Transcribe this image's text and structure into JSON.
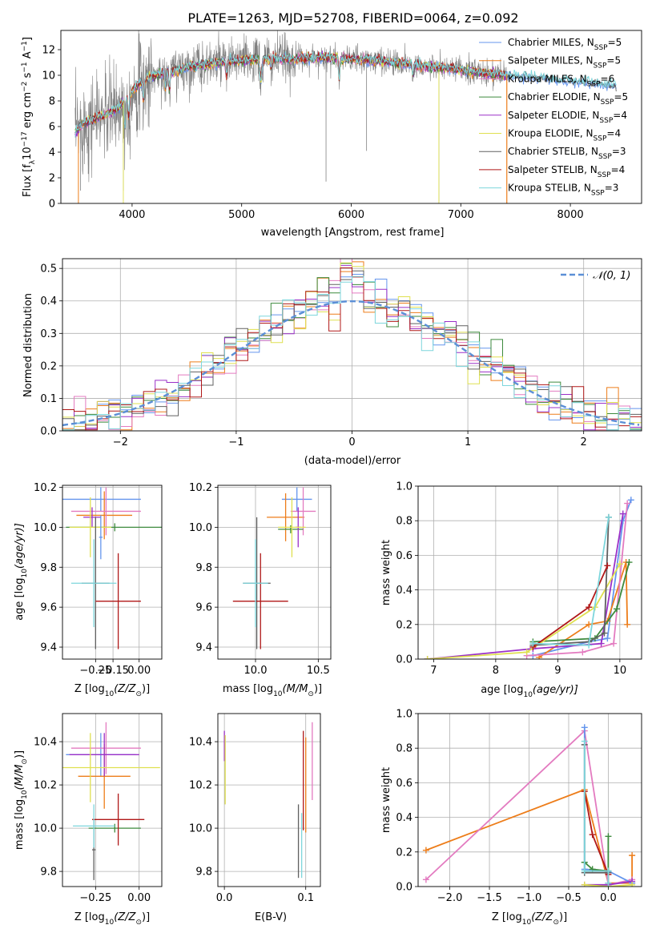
{
  "figure_title": "PLATE=1263, MJD=52708, FIBERID=0064, z=0.092",
  "colors": {
    "cm": "#6495ed",
    "sm": "#ed7d1a",
    "km": "#e37bc0",
    "ce": "#3d8a3d",
    "se": "#9b30c8",
    "ke": "#dfe050",
    "cs": "#606060",
    "ss": "#b01818",
    "ks": "#7dd6dc",
    "data": "#808080",
    "gauss": "#5b8fd6"
  },
  "chart_data": [
    {
      "id": "spectrum",
      "type": "line",
      "title": "PLATE=1263, MJD=52708, FIBERID=0064, z=0.092",
      "xlabel": "wavelength [Angstrom, rest frame]",
      "ylabel_main": "Flux [f",
      "ylabel_lambda": "λ",
      "ylabel_mid": "10",
      "ylabel_exp1": "−17",
      "ylabel_mid2": " erg cm",
      "ylabel_exp2": "−2",
      "ylabel_mid3": " s",
      "ylabel_exp3": "−1",
      "ylabel_mid4": " A",
      "ylabel_exp4": "−1",
      "ylabel_end": "]",
      "xlim": [
        3350,
        8650
      ],
      "ylim": [
        0,
        13.5
      ],
      "xticks": [
        4000,
        5000,
        6000,
        7000,
        8000
      ],
      "yticks": [
        0,
        2,
        4,
        6,
        8,
        10,
        12
      ],
      "legend_position": "right",
      "legend": [
        {
          "name": "Chabrier MILES, N",
          "sub": "SSP",
          "val": "=5",
          "color": "cm"
        },
        {
          "name": "Salpeter MILES, N",
          "sub": "SSP",
          "val": "=5",
          "color": "sm"
        },
        {
          "name": "Kroupa MILES, N",
          "sub": "SSP",
          "val": "=6",
          "color": "km"
        },
        {
          "name": "Chabrier ELODIE, N",
          "sub": "SSP",
          "val": "=5",
          "color": "ce"
        },
        {
          "name": "Salpeter ELODIE, N",
          "sub": "SSP",
          "val": "=4",
          "color": "se"
        },
        {
          "name": "Kroupa ELODIE, N",
          "sub": "SSP",
          "val": "=4",
          "color": "ke"
        },
        {
          "name": "Chabrier STELIB, N",
          "sub": "SSP",
          "val": "=3",
          "color": "cs"
        },
        {
          "name": "Salpeter STELIB, N",
          "sub": "SSP",
          "val": "=4",
          "color": "ss"
        },
        {
          "name": "Kroupa STELIB, N",
          "sub": "SSP",
          "val": "=3",
          "color": "ks"
        }
      ],
      "continuum": [
        [
          3480,
          5.5
        ],
        [
          3550,
          6.2
        ],
        [
          3650,
          6.6
        ],
        [
          3750,
          6.9
        ],
        [
          3850,
          7.3
        ],
        [
          3950,
          8.2
        ],
        [
          4050,
          9.2
        ],
        [
          4150,
          9.8
        ],
        [
          4300,
          10.2
        ],
        [
          4500,
          10.6
        ],
        [
          4700,
          10.9
        ],
        [
          4900,
          11.1
        ],
        [
          5100,
          11.2
        ],
        [
          5300,
          11.3
        ],
        [
          5500,
          11.3
        ],
        [
          5700,
          11.4
        ],
        [
          5900,
          11.3
        ],
        [
          6100,
          11.2
        ],
        [
          6300,
          11.1
        ],
        [
          6500,
          10.9
        ],
        [
          6700,
          10.7
        ],
        [
          6900,
          10.5
        ],
        [
          7100,
          10.3
        ],
        [
          7300,
          10.1
        ],
        [
          7500,
          9.95
        ],
        [
          7700,
          9.8
        ],
        [
          7900,
          9.6
        ],
        [
          8100,
          9.45
        ],
        [
          8300,
          9.3
        ],
        [
          8420,
          9.2
        ]
      ]
    },
    {
      "id": "residuals",
      "type": "step",
      "xlabel": "(data-model)/error",
      "ylabel": "Normed distribution",
      "xlim": [
        -2.5,
        2.5
      ],
      "ylim": [
        0,
        0.53
      ],
      "xticks": [
        -2,
        -1,
        0,
        1,
        2
      ],
      "xtick_labels": [
        "−2",
        "−1",
        "0",
        "1",
        "2"
      ],
      "yticks": [
        0,
        0.1,
        0.2,
        0.3,
        0.4,
        0.5
      ],
      "ytick_labels": [
        "0.0",
        "0.1",
        "0.2",
        "0.3",
        "0.4",
        "0.5"
      ],
      "legend": [
        {
          "name": "𝒩(0, 1)",
          "color": "gauss",
          "style": "dashed"
        }
      ],
      "legend_position": "top-right",
      "bin_width": 0.1
    },
    {
      "id": "age_vs_Z",
      "type": "errorbar",
      "xlabel_main": "Z [log",
      "xlabel_sub": "10",
      "xlabel_arg": "(Z/Z",
      "xlabel_sun": "⊙",
      "xlabel_end": ")]",
      "ylabel_main": "age  [log",
      "ylabel_sub": "10",
      "ylabel_arg": "(age/yr)]",
      "xlim": [
        -0.44,
        0.13
      ],
      "ylim": [
        9.34,
        10.21
      ],
      "xticks": [
        -0.25,
        -0.15,
        0.0
      ],
      "xtick_labels": [
        "−0.25",
        "−0.15",
        "0.00"
      ],
      "yticks": [
        9.4,
        9.6,
        9.8,
        10.0,
        10.2
      ],
      "ytick_labels": [
        "9.4",
        "9.6",
        "9.8",
        "10.0",
        "10.2"
      ],
      "points": [
        {
          "c": "cm",
          "x": -0.22,
          "xerr": 0.23,
          "y": 10.14,
          "yerr": 0.06
        },
        {
          "c": "sm",
          "x": -0.2,
          "xerr": 0.16,
          "y": 10.06,
          "yerr": 0.12
        },
        {
          "c": "km",
          "x": -0.19,
          "xerr": 0.2,
          "y": 10.08,
          "yerr": 0.12
        },
        {
          "c": "ce",
          "x": -0.14,
          "xerr": 0.28,
          "y": 10.0,
          "yerr": 0.02
        },
        {
          "c": "se",
          "x": -0.27,
          "xerr": 0.05,
          "y": 10.05,
          "yerr": 0.05
        },
        {
          "c": "ke",
          "x": -0.28,
          "xerr": 0.12,
          "y": 10.0,
          "yerr": 0.15
        },
        {
          "c": "cs",
          "x": -0.25,
          "xerr": 0.08,
          "y": 9.72,
          "yerr": 0.33
        },
        {
          "c": "ss",
          "x": -0.12,
          "xerr": 0.13,
          "y": 9.63,
          "yerr": 0.24
        },
        {
          "c": "ks",
          "x": -0.26,
          "xerr": 0.13,
          "y": 9.72,
          "yerr": 0.22
        },
        {
          "c": "cm",
          "x": -0.22,
          "xerr": 0.01,
          "y": 9.95,
          "yerr": 0.11
        }
      ]
    },
    {
      "id": "age_vs_mass",
      "type": "errorbar",
      "xlabel_main": "mass [log",
      "xlabel_sub": "10",
      "xlabel_arg": "(M/M",
      "xlabel_sun": "⊙",
      "xlabel_end": ")]",
      "xlim": [
        9.7,
        10.6
      ],
      "ylim": [
        9.34,
        10.21
      ],
      "xticks": [
        10.0,
        10.5
      ],
      "xtick_labels": [
        "10.0",
        "10.5"
      ],
      "yticks": [
        9.4,
        9.6,
        9.8,
        10.0,
        10.2
      ],
      "ytick_labels": [
        "9.4",
        "9.6",
        "9.8",
        "10.0",
        "10.2"
      ],
      "points": [
        {
          "c": "cm",
          "x": 10.33,
          "xerr": 0.12,
          "y": 10.14,
          "yerr": 0.06
        },
        {
          "c": "sm",
          "x": 10.24,
          "xerr": 0.15,
          "y": 10.05,
          "yerr": 0.12
        },
        {
          "c": "km",
          "x": 10.38,
          "xerr": 0.1,
          "y": 10.08,
          "yerr": 0.12
        },
        {
          "c": "ce",
          "x": 10.28,
          "xerr": 0.1,
          "y": 9.99,
          "yerr": 0.02
        },
        {
          "c": "se",
          "x": 10.34,
          "xerr": 0.02,
          "y": 10.0,
          "yerr": 0.1
        },
        {
          "c": "ke",
          "x": 10.29,
          "xerr": 0.11,
          "y": 10.0,
          "yerr": 0.15
        },
        {
          "c": "cs",
          "x": 10.01,
          "xerr": 0.11,
          "y": 9.72,
          "yerr": 0.33
        },
        {
          "c": "ss",
          "x": 10.04,
          "xerr": 0.22,
          "y": 9.63,
          "yerr": 0.24
        },
        {
          "c": "ks",
          "x": 10.0,
          "xerr": 0.1,
          "y": 9.72,
          "yerr": 0.22
        }
      ]
    },
    {
      "id": "cum_weight_age",
      "type": "line",
      "xlabel_main": "age  [log",
      "xlabel_sub": "10",
      "xlabel_arg": "(age/yr)]",
      "ylabel": "mass weight",
      "xlim": [
        6.75,
        10.35
      ],
      "ylim": [
        0,
        1.0
      ],
      "xticks": [
        7,
        8,
        9,
        10
      ],
      "xtick_labels": [
        "7",
        "8",
        "9",
        "10"
      ],
      "yticks": [
        0,
        0.2,
        0.4,
        0.6,
        0.8,
        1.0
      ],
      "ytick_labels": [
        "0.0",
        "0.2",
        "0.4",
        "0.6",
        "0.8",
        "1.0"
      ],
      "series": [
        {
          "c": "cm",
          "points": [
            [
              8.6,
              0.02
            ],
            [
              9.5,
              0.1
            ],
            [
              9.8,
              0.12
            ],
            [
              10.05,
              0.8
            ],
            [
              10.18,
              0.92
            ]
          ]
        },
        {
          "c": "sm",
          "points": [
            [
              8.7,
              0.01
            ],
            [
              9.5,
              0.2
            ],
            [
              9.8,
              0.22
            ],
            [
              10.1,
              0.56
            ],
            [
              10.12,
              0.2
            ]
          ]
        },
        {
          "c": "km",
          "points": [
            [
              8.5,
              0.02
            ],
            [
              9.4,
              0.04
            ],
            [
              9.9,
              0.09
            ],
            [
              10.12,
              0.9
            ]
          ]
        },
        {
          "c": "ce",
          "points": [
            [
              8.6,
              0.1
            ],
            [
              9.6,
              0.12
            ],
            [
              9.95,
              0.29
            ],
            [
              10.15,
              0.56
            ]
          ]
        },
        {
          "c": "se",
          "points": [
            [
              6.9,
              0.0
            ],
            [
              8.6,
              0.06
            ],
            [
              9.7,
              0.09
            ],
            [
              10.05,
              0.84
            ]
          ]
        },
        {
          "c": "ke",
          "points": [
            [
              6.9,
              0.0
            ],
            [
              8.5,
              0.04
            ],
            [
              9.6,
              0.3
            ],
            [
              10.0,
              0.55
            ]
          ]
        },
        {
          "c": "cs",
          "points": [
            [
              8.6,
              0.08
            ],
            [
              9.5,
              0.1
            ],
            [
              9.75,
              0.15
            ],
            [
              9.82,
              0.82
            ]
          ]
        },
        {
          "c": "ss",
          "points": [
            [
              8.6,
              0.07
            ],
            [
              9.5,
              0.3
            ],
            [
              9.8,
              0.54
            ]
          ]
        },
        {
          "c": "ks",
          "points": [
            [
              8.6,
              0.09
            ],
            [
              9.5,
              0.08
            ],
            [
              9.82,
              0.82
            ]
          ]
        }
      ]
    },
    {
      "id": "mass_vs_Z",
      "type": "errorbar",
      "xlabel_main": "Z [log",
      "xlabel_sub": "10",
      "xlabel_arg": "(Z/Z",
      "xlabel_sun": "⊙",
      "xlabel_end": ")]",
      "ylabel_main": "mass [log",
      "ylabel_sub": "10",
      "ylabel_arg": "(M/M",
      "ylabel_sun": "⊙",
      "ylabel_end": ")]",
      "xlim": [
        -0.44,
        0.13
      ],
      "ylim": [
        9.73,
        10.53
      ],
      "xticks": [
        -0.25,
        0.0
      ],
      "xtick_labels": [
        "−0.25",
        "0.00"
      ],
      "yticks": [
        9.8,
        10.0,
        10.2,
        10.4
      ],
      "ytick_labels": [
        "9.8",
        "10.0",
        "10.2",
        "10.4"
      ],
      "points": [
        {
          "c": "cm",
          "x": -0.22,
          "xerr": 0.2,
          "y": 10.34,
          "yerr": 0.1
        },
        {
          "c": "sm",
          "x": -0.2,
          "xerr": 0.15,
          "y": 10.24,
          "yerr": 0.15
        },
        {
          "c": "km",
          "x": -0.19,
          "xerr": 0.2,
          "y": 10.37,
          "yerr": 0.12
        },
        {
          "c": "ce",
          "x": -0.14,
          "xerr": 0.15,
          "y": 10.0,
          "yerr": 0.02
        },
        {
          "c": "se",
          "x": -0.2,
          "xerr": 0.2,
          "y": 10.34,
          "yerr": 0.1
        },
        {
          "c": "ke",
          "x": -0.28,
          "xerr": 0.4,
          "y": 10.28,
          "yerr": 0.16
        },
        {
          "c": "cs",
          "x": -0.26,
          "xerr": 0.01,
          "y": 9.9,
          "yerr": 0.14
        },
        {
          "c": "ss",
          "x": -0.12,
          "xerr": 0.15,
          "y": 10.04,
          "yerr": 0.12
        },
        {
          "c": "ks",
          "x": -0.26,
          "xerr": 0.12,
          "y": 10.01,
          "yerr": 0.1
        }
      ]
    },
    {
      "id": "mass_vs_EBV",
      "type": "errorbar",
      "xlabel": "E(B-V)",
      "xlim": [
        -0.008,
        0.118
      ],
      "ylim": [
        9.73,
        10.53
      ],
      "xticks": [
        0.0,
        0.1
      ],
      "xtick_labels": [
        "0.0",
        "0.1"
      ],
      "yticks": [
        9.8,
        10.0,
        10.2,
        10.4
      ],
      "ytick_labels": [
        "9.8",
        "10.0",
        "10.2",
        "10.4"
      ],
      "points": [
        {
          "c": "se",
          "x": 0.0,
          "xerr": 0.0,
          "y": 10.38,
          "yerr": 0.07
        },
        {
          "c": "ke",
          "x": 0.001,
          "xerr": 0.0,
          "y": 10.27,
          "yerr": 0.16
        },
        {
          "c": "cs",
          "x": 0.091,
          "xerr": 0.0,
          "y": 9.94,
          "yerr": 0.17
        },
        {
          "c": "ss",
          "x": 0.097,
          "xerr": 0.0,
          "y": 10.22,
          "yerr": 0.23
        },
        {
          "c": "sm",
          "x": 0.1,
          "xerr": 0.0,
          "y": 10.2,
          "yerr": 0.22
        },
        {
          "c": "ks",
          "x": 0.095,
          "xerr": 0.0,
          "y": 9.92,
          "yerr": 0.15
        },
        {
          "c": "km",
          "x": 0.108,
          "xerr": 0.0,
          "y": 10.31,
          "yerr": 0.18
        }
      ]
    },
    {
      "id": "cum_weight_Z",
      "type": "line",
      "xlabel_main": "Z [log",
      "xlabel_sub": "10",
      "xlabel_arg": "(Z/Z",
      "xlabel_sun": "⊙",
      "xlabel_end": ")]",
      "ylabel": "mass weight",
      "xlim": [
        -2.4,
        0.42
      ],
      "ylim": [
        0,
        1.0
      ],
      "xticks": [
        -2.0,
        -1.5,
        -1.0,
        -0.5,
        0.0
      ],
      "xtick_labels": [
        "−2.0",
        "−1.5",
        "−1.0",
        "−0.5",
        "0.0"
      ],
      "yticks": [
        0,
        0.2,
        0.4,
        0.6,
        0.8,
        1.0
      ],
      "ytick_labels": [
        "0.0",
        "0.2",
        "0.4",
        "0.6",
        "0.8",
        "1.0"
      ],
      "series": [
        {
          "c": "sm",
          "points": [
            [
              -2.3,
              0.21
            ],
            [
              -0.3,
              0.56
            ],
            [
              0.0,
              0.02
            ],
            [
              0.3,
              0.02
            ],
            [
              0.3,
              0.18
            ]
          ]
        },
        {
          "c": "km",
          "points": [
            [
              -2.3,
              0.04
            ],
            [
              -0.3,
              0.9
            ],
            [
              0.0,
              0.01
            ],
            [
              0.3,
              0.04
            ]
          ]
        },
        {
          "c": "cm",
          "points": [
            [
              -0.3,
              0.92
            ],
            [
              -0.3,
              0.1
            ],
            [
              0.0,
              0.09
            ],
            [
              0.3,
              0.02
            ]
          ]
        },
        {
          "c": "ss",
          "points": [
            [
              -0.3,
              0.55
            ],
            [
              -0.2,
              0.3
            ],
            [
              0.0,
              0.07
            ],
            [
              0.0,
              0.02
            ]
          ]
        },
        {
          "c": "ce",
          "points": [
            [
              -0.3,
              0.14
            ],
            [
              -0.2,
              0.1
            ],
            [
              0.0,
              0.09
            ],
            [
              0.0,
              0.29
            ]
          ]
        },
        {
          "c": "se",
          "points": [
            [
              -0.3,
              0.01
            ],
            [
              0.0,
              0.01
            ],
            [
              0.3,
              0.03
            ]
          ]
        },
        {
          "c": "ke",
          "points": [
            [
              -0.3,
              0.01
            ],
            [
              0.0,
              0.0
            ],
            [
              0.3,
              0.01
            ]
          ]
        },
        {
          "c": "cs",
          "points": [
            [
              -0.3,
              0.82
            ],
            [
              -0.3,
              0.08
            ],
            [
              0.0,
              0.08
            ]
          ]
        },
        {
          "c": "ks",
          "points": [
            [
              -0.3,
              0.84
            ],
            [
              -0.3,
              0.09
            ],
            [
              0.0,
              0.09
            ],
            [
              0.0,
              0.02
            ]
          ]
        }
      ]
    }
  ]
}
